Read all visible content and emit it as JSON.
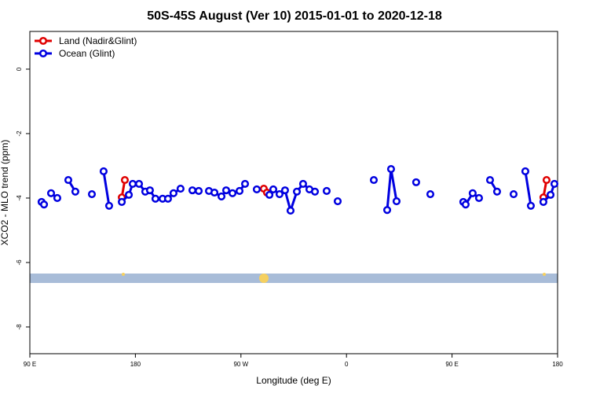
{
  "chart_data": {
    "type": "line",
    "title": "50S-45S August (Ver 10)   2015-01-01 to 2020-12-18",
    "x_label": "Longitude (deg E)",
    "y_label": "XCO2 - MLO trend (ppm)",
    "xlim": [
      90,
      540
    ],
    "xticks": [
      {
        "value": 90,
        "label": "90 E"
      },
      180,
      {
        "value": 270,
        "label": "90 W"
      },
      {
        "value": 360,
        "label": "0"
      },
      {
        "value": 450,
        "label": "90 E"
      },
      {
        "value": 540,
        "label": "180"
      }
    ],
    "ylim": [
      -8.83,
      1.17
    ],
    "yticks": [
      0,
      -2,
      -4,
      -6,
      -8
    ],
    "legend": "top-left",
    "series": [
      {
        "name": "Land (Nadir&Glint)",
        "color": "#e00000",
        "x": [
          168.4,
          171.0,
          null,
          289.5,
          292.2,
          null,
          527.9,
          530.6
        ],
        "values": [
          -3.98,
          -3.44,
          null,
          -3.71,
          -3.83,
          null,
          -3.98,
          -3.44
        ]
      },
      {
        "name": "Ocean (Glint)",
        "color": "#0000e0",
        "x": [
          100.0,
          102.1,
          null,
          108.1,
          113.4,
          null,
          122.8,
          128.8,
          null,
          142.9,
          null,
          152.9,
          157.6,
          null,
          168.4,
          174.4,
          177.7,
          183.1,
          188.4,
          192.4,
          197.1,
          203.2,
          207.8,
          212.5,
          218.5,
          null,
          228.6,
          234.0,
          null,
          242.7,
          247.4,
          253.4,
          257.4,
          262.8,
          268.8,
          273.5,
          null,
          283.5,
          null,
          294.3,
          297.6,
          302.9,
          307.6,
          312.3,
          317.7,
          323.0,
          328.4,
          333.1,
          null,
          343.1,
          null,
          352.5,
          null,
          383.3,
          null,
          394.7,
          398.0,
          402.7,
          null,
          419.4,
          null,
          431.5,
          null,
          459.6,
          461.6,
          467.6,
          473.0,
          null,
          482.4,
          488.4,
          null,
          502.5,
          null,
          512.5,
          517.2,
          null,
          527.9,
          534.0,
          537.3
        ],
        "values": [
          -4.12,
          -4.2,
          null,
          -3.85,
          -4.0,
          null,
          -3.44,
          -3.8,
          null,
          -3.88,
          null,
          -3.17,
          -4.24,
          null,
          -4.12,
          -3.9,
          -3.56,
          -3.56,
          -3.8,
          -3.76,
          -4.02,
          -4.02,
          -4.02,
          -3.85,
          -3.71,
          null,
          -3.76,
          -3.78,
          null,
          -3.78,
          -3.83,
          -3.95,
          -3.76,
          -3.85,
          -3.78,
          -3.56,
          null,
          -3.73,
          null,
          -3.9,
          -3.73,
          -3.88,
          -3.76,
          -4.39,
          -3.8,
          -3.56,
          -3.73,
          -3.8,
          null,
          -3.78,
          null,
          -4.1,
          null,
          -3.44,
          null,
          -4.37,
          -3.1,
          -4.1,
          null,
          -3.51,
          null,
          -3.88,
          null,
          -4.12,
          -4.2,
          -3.85,
          -4.0,
          null,
          -3.44,
          -3.8,
          null,
          -3.88,
          null,
          -3.17,
          -4.24,
          null,
          -4.12,
          -3.9,
          -3.56
        ]
      }
    ]
  }
}
